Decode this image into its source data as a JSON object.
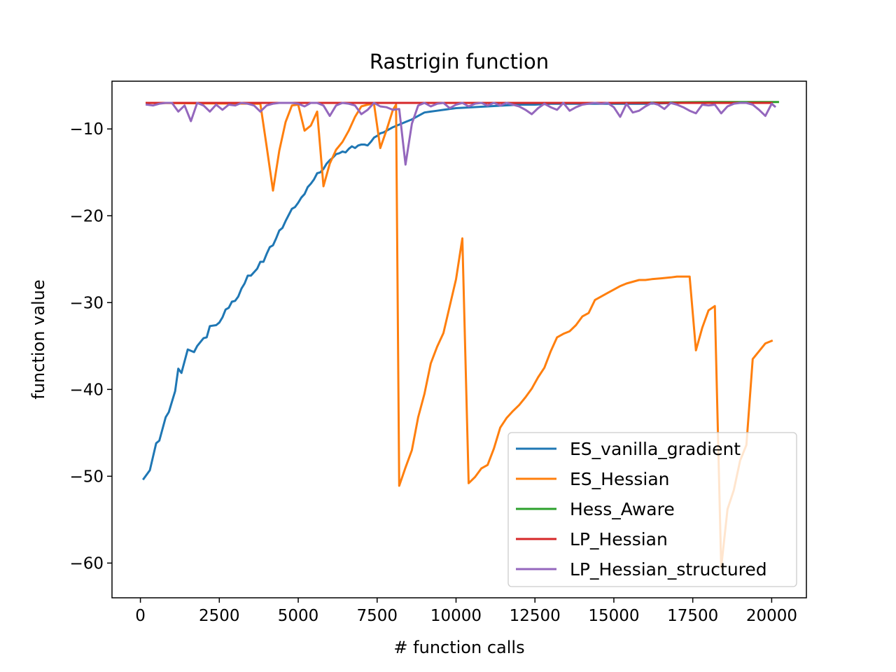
{
  "chart_data": {
    "type": "line",
    "title": "Rastrigin function",
    "xlabel": "# function calls",
    "ylabel": "function value",
    "xlim": [
      -900,
      21100
    ],
    "ylim": [
      -64,
      -4.5
    ],
    "xticks": [
      0,
      2500,
      5000,
      7500,
      10000,
      12500,
      15000,
      17500,
      20000
    ],
    "xtick_labels": [
      "0",
      "2500",
      "5000",
      "7500",
      "10000",
      "12500",
      "15000",
      "17500",
      "20000"
    ],
    "yticks": [
      -60,
      -50,
      -40,
      -30,
      -20,
      -10
    ],
    "ytick_labels": [
      "−60",
      "−50",
      "−40",
      "−30",
      "−20",
      "−10"
    ],
    "grid": false,
    "legend_position": "lower-right",
    "series": [
      {
        "name": "ES_vanilla_gradient",
        "color": "#1f77b4",
        "points": [
          [
            100,
            -50.3
          ],
          [
            300,
            -49.3
          ],
          [
            500,
            -46.2
          ],
          [
            600,
            -45.9
          ],
          [
            800,
            -43.2
          ],
          [
            900,
            -42.6
          ],
          [
            1100,
            -40.2
          ],
          [
            1200,
            -37.6
          ],
          [
            1300,
            -38.1
          ],
          [
            1500,
            -35.4
          ],
          [
            1700,
            -35.7
          ],
          [
            1800,
            -35.0
          ],
          [
            2000,
            -34.1
          ],
          [
            2100,
            -34.0
          ],
          [
            2200,
            -32.7
          ],
          [
            2400,
            -32.6
          ],
          [
            2500,
            -32.3
          ],
          [
            2600,
            -31.7
          ],
          [
            2700,
            -30.8
          ],
          [
            2800,
            -30.6
          ],
          [
            2900,
            -29.9
          ],
          [
            3000,
            -29.8
          ],
          [
            3100,
            -29.3
          ],
          [
            3200,
            -28.4
          ],
          [
            3300,
            -27.8
          ],
          [
            3400,
            -26.9
          ],
          [
            3500,
            -26.9
          ],
          [
            3600,
            -26.5
          ],
          [
            3700,
            -26.1
          ],
          [
            3800,
            -25.3
          ],
          [
            3900,
            -25.3
          ],
          [
            4000,
            -24.4
          ],
          [
            4100,
            -23.6
          ],
          [
            4200,
            -23.4
          ],
          [
            4300,
            -22.6
          ],
          [
            4400,
            -21.7
          ],
          [
            4500,
            -21.4
          ],
          [
            4600,
            -20.6
          ],
          [
            4700,
            -19.9
          ],
          [
            4800,
            -19.2
          ],
          [
            4900,
            -19.0
          ],
          [
            5000,
            -18.5
          ],
          [
            5100,
            -17.9
          ],
          [
            5200,
            -17.5
          ],
          [
            5300,
            -16.7
          ],
          [
            5400,
            -16.3
          ],
          [
            5500,
            -15.8
          ],
          [
            5600,
            -15.1
          ],
          [
            5700,
            -15.0
          ],
          [
            5800,
            -14.6
          ],
          [
            5900,
            -14.0
          ],
          [
            6000,
            -13.6
          ],
          [
            6100,
            -13.3
          ],
          [
            6200,
            -12.9
          ],
          [
            6300,
            -12.8
          ],
          [
            6400,
            -12.6
          ],
          [
            6500,
            -12.7
          ],
          [
            6600,
            -12.3
          ],
          [
            6700,
            -12.0
          ],
          [
            6800,
            -12.2
          ],
          [
            6900,
            -11.9
          ],
          [
            7000,
            -11.8
          ],
          [
            7100,
            -11.8
          ],
          [
            7200,
            -11.9
          ],
          [
            7300,
            -11.5
          ],
          [
            7400,
            -11.0
          ],
          [
            7500,
            -10.8
          ],
          [
            7600,
            -10.5
          ],
          [
            7700,
            -10.4
          ],
          [
            7800,
            -10.2
          ],
          [
            7900,
            -10.0
          ],
          [
            8000,
            -9.8
          ],
          [
            8200,
            -9.5
          ],
          [
            8400,
            -9.2
          ],
          [
            8600,
            -8.9
          ],
          [
            8800,
            -8.5
          ],
          [
            9000,
            -8.1
          ],
          [
            9200,
            -8.0
          ],
          [
            9400,
            -7.9
          ],
          [
            9600,
            -7.8
          ],
          [
            9800,
            -7.7
          ],
          [
            10000,
            -7.6
          ],
          [
            10500,
            -7.5
          ],
          [
            11000,
            -7.4
          ],
          [
            11500,
            -7.3
          ],
          [
            12000,
            -7.2
          ],
          [
            12500,
            -7.2
          ],
          [
            13000,
            -7.1
          ],
          [
            14000,
            -7.1
          ],
          [
            15000,
            -7.1
          ],
          [
            16000,
            -7.1
          ],
          [
            17000,
            -7.0
          ],
          [
            18000,
            -7.0
          ],
          [
            19000,
            -7.0
          ],
          [
            20000,
            -7.0
          ]
        ]
      },
      {
        "name": "ES_Hessian",
        "color": "#ff7f0e",
        "points": [
          [
            200,
            -7.0
          ],
          [
            3800,
            -7.1
          ],
          [
            4000,
            -12.0
          ],
          [
            4200,
            -17.1
          ],
          [
            4400,
            -12.5
          ],
          [
            4600,
            -9.2
          ],
          [
            4800,
            -7.3
          ],
          [
            5000,
            -7.2
          ],
          [
            5200,
            -10.2
          ],
          [
            5400,
            -9.6
          ],
          [
            5600,
            -8.0
          ],
          [
            5800,
            -16.6
          ],
          [
            6000,
            -14.0
          ],
          [
            6200,
            -12.4
          ],
          [
            6400,
            -11.5
          ],
          [
            6600,
            -10.2
          ],
          [
            6800,
            -8.6
          ],
          [
            7000,
            -7.4
          ],
          [
            7200,
            -7.2
          ],
          [
            7400,
            -7.1
          ],
          [
            7600,
            -12.2
          ],
          [
            7800,
            -10.1
          ],
          [
            8000,
            -7.8
          ],
          [
            8100,
            -7.2
          ],
          [
            8200,
            -51.1
          ],
          [
            8400,
            -49.0
          ],
          [
            8600,
            -47.0
          ],
          [
            8800,
            -43.2
          ],
          [
            9000,
            -40.5
          ],
          [
            9200,
            -37.0
          ],
          [
            9400,
            -35.1
          ],
          [
            9600,
            -33.5
          ],
          [
            9800,
            -30.4
          ],
          [
            10000,
            -27.3
          ],
          [
            10200,
            -22.6
          ],
          [
            10400,
            -50.8
          ],
          [
            10600,
            -50.1
          ],
          [
            10800,
            -49.1
          ],
          [
            11000,
            -48.7
          ],
          [
            11200,
            -46.8
          ],
          [
            11400,
            -44.4
          ],
          [
            11600,
            -43.3
          ],
          [
            11800,
            -42.5
          ],
          [
            12000,
            -41.8
          ],
          [
            12200,
            -40.9
          ],
          [
            12400,
            -39.9
          ],
          [
            12600,
            -38.6
          ],
          [
            12800,
            -37.5
          ],
          [
            13000,
            -35.6
          ],
          [
            13200,
            -34.0
          ],
          [
            13400,
            -33.6
          ],
          [
            13600,
            -33.3
          ],
          [
            13800,
            -32.6
          ],
          [
            14000,
            -31.6
          ],
          [
            14200,
            -31.2
          ],
          [
            14400,
            -29.7
          ],
          [
            14600,
            -29.3
          ],
          [
            14800,
            -28.9
          ],
          [
            15000,
            -28.5
          ],
          [
            15200,
            -28.1
          ],
          [
            15400,
            -27.8
          ],
          [
            15600,
            -27.6
          ],
          [
            15800,
            -27.4
          ],
          [
            16000,
            -27.4
          ],
          [
            16200,
            -27.3
          ],
          [
            16500,
            -27.2
          ],
          [
            16800,
            -27.1
          ],
          [
            17000,
            -27.0
          ],
          [
            17200,
            -27.0
          ],
          [
            17400,
            -27.0
          ],
          [
            17600,
            -35.5
          ],
          [
            17800,
            -32.9
          ],
          [
            18000,
            -30.9
          ],
          [
            18200,
            -30.4
          ],
          [
            18400,
            -60.5
          ],
          [
            18600,
            -53.8
          ],
          [
            18800,
            -51.6
          ],
          [
            19000,
            -48.2
          ],
          [
            19200,
            -46.4
          ],
          [
            19400,
            -36.5
          ],
          [
            19600,
            -35.6
          ],
          [
            19800,
            -34.7
          ],
          [
            20000,
            -34.4
          ]
        ]
      },
      {
        "name": "Hess_Aware",
        "color": "#2ca02c",
        "points": [
          [
            200,
            -7.0
          ],
          [
            5000,
            -7.0
          ],
          [
            10000,
            -7.0
          ],
          [
            15000,
            -7.0
          ],
          [
            18000,
            -6.9
          ],
          [
            20200,
            -6.9
          ]
        ]
      },
      {
        "name": "LP_Hessian",
        "color": "#d62728",
        "points": [
          [
            200,
            -7.0
          ],
          [
            5000,
            -7.0
          ],
          [
            10000,
            -7.0
          ],
          [
            15000,
            -7.0
          ],
          [
            20000,
            -7.0
          ]
        ]
      },
      {
        "name": "LP_Hessian_structured",
        "color": "#9467bd",
        "points": [
          [
            200,
            -7.2
          ],
          [
            400,
            -7.3
          ],
          [
            600,
            -7.1
          ],
          [
            800,
            -7.0
          ],
          [
            1000,
            -7.0
          ],
          [
            1200,
            -8.0
          ],
          [
            1400,
            -7.3
          ],
          [
            1600,
            -9.1
          ],
          [
            1800,
            -7.0
          ],
          [
            2000,
            -7.3
          ],
          [
            2200,
            -8.0
          ],
          [
            2400,
            -7.2
          ],
          [
            2600,
            -7.8
          ],
          [
            2800,
            -7.2
          ],
          [
            3000,
            -7.3
          ],
          [
            3200,
            -7.0
          ],
          [
            3400,
            -7.1
          ],
          [
            3600,
            -7.3
          ],
          [
            3800,
            -8.0
          ],
          [
            4000,
            -7.3
          ],
          [
            4200,
            -7.1
          ],
          [
            4400,
            -7.0
          ],
          [
            4600,
            -7.0
          ],
          [
            4800,
            -7.0
          ],
          [
            5000,
            -7.1
          ],
          [
            5200,
            -7.4
          ],
          [
            5400,
            -7.0
          ],
          [
            5600,
            -7.0
          ],
          [
            5800,
            -7.3
          ],
          [
            6000,
            -8.5
          ],
          [
            6200,
            -7.3
          ],
          [
            6400,
            -7.0
          ],
          [
            6600,
            -7.1
          ],
          [
            6800,
            -7.3
          ],
          [
            7000,
            -8.3
          ],
          [
            7200,
            -7.8
          ],
          [
            7400,
            -7.0
          ],
          [
            7600,
            -7.4
          ],
          [
            7800,
            -7.5
          ],
          [
            8000,
            -7.8
          ],
          [
            8200,
            -7.7
          ],
          [
            8400,
            -14.1
          ],
          [
            8600,
            -9.4
          ],
          [
            8800,
            -7.3
          ],
          [
            9000,
            -7.0
          ],
          [
            9200,
            -7.4
          ],
          [
            9400,
            -7.1
          ],
          [
            9600,
            -7.0
          ],
          [
            9800,
            -7.6
          ],
          [
            10000,
            -7.2
          ],
          [
            10200,
            -7.0
          ],
          [
            10400,
            -7.4
          ],
          [
            10600,
            -7.1
          ],
          [
            10800,
            -7.0
          ],
          [
            11000,
            -7.3
          ],
          [
            11200,
            -7.0
          ],
          [
            11400,
            -7.3
          ],
          [
            11600,
            -7.0
          ],
          [
            11800,
            -7.2
          ],
          [
            12000,
            -7.4
          ],
          [
            12200,
            -7.8
          ],
          [
            12400,
            -8.3
          ],
          [
            12600,
            -7.6
          ],
          [
            12800,
            -7.1
          ],
          [
            13000,
            -7.5
          ],
          [
            13200,
            -7.8
          ],
          [
            13400,
            -7.0
          ],
          [
            13600,
            -7.9
          ],
          [
            13800,
            -7.5
          ],
          [
            14000,
            -7.2
          ],
          [
            14200,
            -7.1
          ],
          [
            14400,
            -7.0
          ],
          [
            14600,
            -7.1
          ],
          [
            14800,
            -7.0
          ],
          [
            15000,
            -7.5
          ],
          [
            15200,
            -8.6
          ],
          [
            15400,
            -7.1
          ],
          [
            15600,
            -8.1
          ],
          [
            15800,
            -7.9
          ],
          [
            16000,
            -7.4
          ],
          [
            16200,
            -7.0
          ],
          [
            16400,
            -7.2
          ],
          [
            16600,
            -7.7
          ],
          [
            16800,
            -7.0
          ],
          [
            17000,
            -7.2
          ],
          [
            17200,
            -7.5
          ],
          [
            17400,
            -7.9
          ],
          [
            17600,
            -8.2
          ],
          [
            17800,
            -7.2
          ],
          [
            18000,
            -7.3
          ],
          [
            18200,
            -7.2
          ],
          [
            18400,
            -8.2
          ],
          [
            18600,
            -7.4
          ],
          [
            18800,
            -7.1
          ],
          [
            19000,
            -7.0
          ],
          [
            19200,
            -7.0
          ],
          [
            19400,
            -7.2
          ],
          [
            19600,
            -7.8
          ],
          [
            19800,
            -8.5
          ],
          [
            20000,
            -7.1
          ],
          [
            20100,
            -7.4
          ]
        ]
      }
    ]
  }
}
